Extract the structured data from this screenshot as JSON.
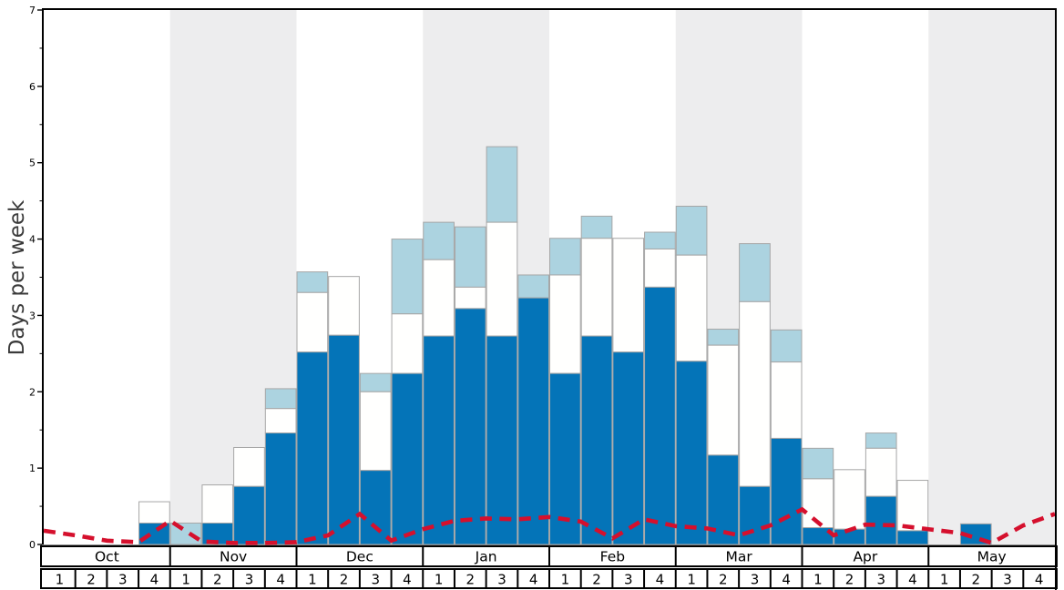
{
  "chart_data": {
    "type": "bar",
    "stacked": true,
    "title": "",
    "ylabel": "Days per week",
    "ylim": [
      0,
      7
    ],
    "yticks": [
      "0",
      "1",
      "2",
      "3",
      "4",
      "5",
      "6",
      "7"
    ],
    "grid": false,
    "legend": "none",
    "months": [
      "Oct",
      "Nov",
      "Dec",
      "Jan",
      "Feb",
      "Mar",
      "Apr",
      "May"
    ],
    "week_labels": [
      "1",
      "2",
      "3",
      "4"
    ],
    "gray_band_months": [
      "Nov",
      "Jan",
      "Mar",
      "May"
    ],
    "colors": {
      "dark_blue": "#0474b8",
      "white_bar": "#fffffe",
      "light_blue": "#acd3e0",
      "band": "#ededee",
      "bar_border": "#a6a6a6",
      "zero_line": "#8a8a8a",
      "frame": "#000000",
      "red_line": "#d5102d",
      "text": "#000000"
    },
    "series_note": "cumulative_tops are stack-top values in days/week for 32 weekly bars, Oct week1 through May week4",
    "series": [
      {
        "name": "dark-blue-days",
        "color": "#0474b8",
        "cumulative_tops": [
          0,
          0,
          0,
          0.28,
          0,
          0.28,
          0.76,
          1.46,
          2.52,
          2.74,
          0.97,
          2.24,
          2.73,
          3.09,
          2.73,
          3.23,
          2.24,
          2.73,
          2.52,
          3.37,
          2.4,
          1.17,
          0.76,
          1.39,
          0.22,
          0.2,
          0.63,
          0.18,
          0,
          0.27,
          0,
          0
        ]
      },
      {
        "name": "white-days",
        "color": "#fffffe",
        "cumulative_tops": [
          0,
          0,
          0,
          0.56,
          0,
          0.78,
          1.27,
          1.78,
          3.3,
          3.51,
          2.0,
          3.02,
          3.73,
          3.37,
          4.22,
          3.23,
          3.53,
          4.01,
          4.01,
          3.87,
          3.79,
          2.61,
          3.18,
          2.39,
          0.86,
          0.98,
          1.26,
          0.84,
          0,
          0.27,
          0,
          0
        ]
      },
      {
        "name": "light-blue-days",
        "color": "#acd3e0",
        "cumulative_tops": [
          0,
          0,
          0,
          0.56,
          0.28,
          0.78,
          1.27,
          2.04,
          3.57,
          3.51,
          2.24,
          4.0,
          4.22,
          4.16,
          5.21,
          3.53,
          4.01,
          4.3,
          4.01,
          4.09,
          4.43,
          2.82,
          3.94,
          2.81,
          1.26,
          0.98,
          1.46,
          0.84,
          0,
          0.27,
          0,
          0
        ]
      }
    ],
    "dashed_line": {
      "name": "red-dashed-reference-line",
      "color": "#d5102d",
      "dash": [
        13,
        8.5
      ],
      "width": 4.6,
      "values_at_week_boundaries": [
        0.18,
        0.12,
        0.05,
        0.03,
        0.31,
        0.04,
        0.02,
        0.02,
        0.03,
        0.12,
        0.4,
        0.05,
        0.2,
        0.31,
        0.34,
        0.33,
        0.36,
        0.3,
        0.08,
        0.33,
        0.24,
        0.21,
        0.12,
        0.25,
        0.46,
        0.12,
        0.26,
        0.25,
        0.2,
        0.15,
        0.02,
        0.25,
        0.4
      ]
    }
  }
}
